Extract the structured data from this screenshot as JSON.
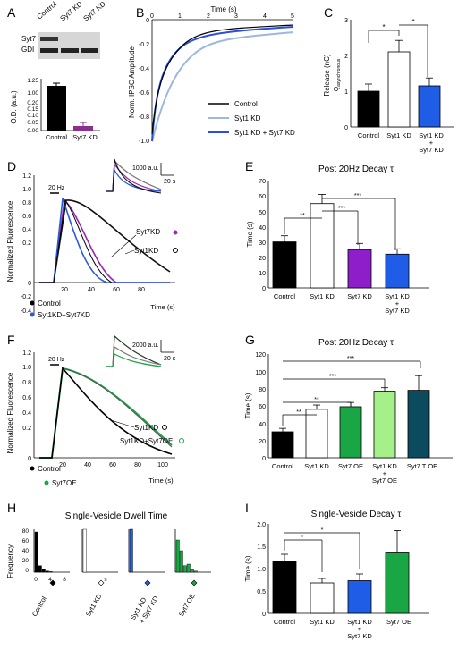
{
  "panels": {
    "A": {
      "letter": "A",
      "blot_labels": [
        "Control",
        "Syt7 KD",
        "Syt7 KD"
      ],
      "rows": [
        "Syt7",
        "GDI"
      ],
      "ylabel": "O.D. (a.u.)",
      "yticks_top": [
        "1.25",
        "1.00"
      ],
      "yticks_bottom": [
        "0.20",
        "0.15",
        "0.10",
        "0.05",
        "0.00"
      ],
      "xlabels": [
        "Control",
        "Syt7 KD"
      ]
    },
    "B": {
      "letter": "B",
      "xlabel": "Time (s)",
      "xticks": [
        "0",
        "1",
        "2",
        "3",
        "4",
        "5"
      ],
      "ylabel": "Norm. IPSC Amplitude",
      "yticks": [
        "0",
        "-0.2",
        "-0.4",
        "-0.6",
        "-0.8",
        "-1.0"
      ],
      "legend": [
        "Control",
        "Syt1 KD",
        "Syt1 KD + Syt7 KD"
      ]
    },
    "C": {
      "letter": "C",
      "ylabel": "Release (nC)",
      "ylabel2": "Q",
      "ylabel2_sub": "asynchronous",
      "yticks": [
        "0",
        "1",
        "2",
        "3"
      ],
      "xlabels": [
        "Control",
        "Syt1 KD",
        "Syt1 KD",
        "+",
        "Syt7 KD"
      ],
      "sig": [
        "*",
        "*"
      ]
    },
    "D": {
      "letter": "D",
      "ylabel": "Normalized Fluorescence",
      "xlabel": "Time (s)",
      "yticks": [
        "1.2",
        "1.0",
        "0.8",
        "0.6",
        "0.4",
        "0.2",
        "0",
        "-0.2",
        "-0.4"
      ],
      "xticks": [
        "20",
        "40",
        "60",
        "80"
      ],
      "stim": "20 Hz",
      "scale": "1000 a.u.",
      "scale_t": "20 s",
      "labels": [
        "Syt7KD",
        "Syt1KD",
        "Control",
        "Syt1KD+Syt7KD"
      ]
    },
    "E": {
      "letter": "E",
      "title": "Post 20Hz Decay τ",
      "ylabel": "Time (s)",
      "yticks": [
        "0",
        "10",
        "20",
        "30",
        "40",
        "50",
        "60",
        "70"
      ],
      "xlabels": [
        "Control",
        "Syt1 KD",
        "Syt7 KD",
        "Syt1 KD",
        "+",
        "Syt7 KD"
      ],
      "sig": [
        "**",
        "***",
        "***"
      ]
    },
    "F": {
      "letter": "F",
      "ylabel": "Normalized Fluorescence",
      "xlabel": "Time (s)",
      "yticks": [
        "1.2",
        "1.0",
        "0.8",
        "0.6",
        "0.4",
        "0.2",
        "0"
      ],
      "xticks": [
        "20",
        "40",
        "60",
        "80",
        "100"
      ],
      "stim": "20 Hz",
      "scale": "2000 a.u.",
      "scale_t": "20 s",
      "labels": [
        "Syt1KD",
        "Syt1KD+Syt7OE",
        "Control",
        "Syt7OE"
      ]
    },
    "G": {
      "letter": "G",
      "title": "Post 20Hz Decay τ",
      "ylabel": "Time (s)",
      "yticks": [
        "0",
        "20",
        "40",
        "60",
        "80",
        "100",
        "120"
      ],
      "xlabels": [
        "Control",
        "Syt1 KD",
        "Syt7 OE",
        "Syt1 KD",
        "+",
        "Syt7 OE",
        "Syt7 T OE"
      ],
      "sig": [
        "**",
        "**",
        "***",
        "***"
      ]
    },
    "H": {
      "letter": "H",
      "title": "Single-Vesicle Dwell Time",
      "ylabel": "Frequency",
      "yticks": [
        "80",
        "60",
        "40",
        "20",
        "0"
      ],
      "xticks": [
        "0",
        "4",
        "8"
      ],
      "groups": [
        "Control",
        "Syt1 KD",
        "Syt1 KD",
        "+ Syt7 KD",
        "Syt7 OE"
      ],
      "extra": "s"
    },
    "I": {
      "letter": "I",
      "title": "Single-Vesicle Decay τ",
      "ylabel": "Time (s)",
      "yticks": [
        "0",
        "0.5",
        "1.0",
        "1.5",
        "2.0"
      ],
      "xlabels": [
        "Control",
        "Syt1 KD",
        "Syt1 KD",
        "+",
        "Syt7 KD",
        "Syt7 OE"
      ],
      "sig": [
        "*",
        "*"
      ]
    }
  },
  "chart_data": [
    {
      "panel": "A",
      "type": "bar",
      "categories": [
        "Control",
        "Syt7 KD"
      ],
      "values": [
        1.0,
        0.05
      ],
      "errors": [
        0.03,
        0.03
      ],
      "colors": [
        "#000000",
        "#8b2f8f"
      ],
      "ylabel": "O.D. (a.u.)"
    },
    {
      "panel": "C",
      "type": "bar",
      "categories": [
        "Control",
        "Syt1 KD",
        "Syt1 KD + Syt7 KD"
      ],
      "values": [
        1.0,
        2.1,
        1.15
      ],
      "errors": [
        0.2,
        0.32,
        0.22
      ],
      "colors": [
        "#000000",
        "#ffffff",
        "#1f5de6"
      ],
      "ylabel": "Release (nC)",
      "ylim": [
        0,
        3
      ]
    },
    {
      "panel": "E",
      "type": "bar",
      "categories": [
        "Control",
        "Syt1 KD",
        "Syt7 KD",
        "Syt1 KD + Syt7 KD"
      ],
      "values": [
        30,
        55,
        25,
        22
      ],
      "errors": [
        4,
        6,
        4,
        3.5
      ],
      "colors": [
        "#000000",
        "#ffffff",
        "#8e1ec9",
        "#1f5de6"
      ],
      "ylabel": "Time (s)",
      "ylim": [
        0,
        70
      ]
    },
    {
      "panel": "G",
      "type": "bar",
      "categories": [
        "Control",
        "Syt1 KD",
        "Syt7 OE",
        "Syt1 KD + Syt7 OE",
        "Syt7 T OE"
      ],
      "values": [
        30,
        56,
        59,
        77,
        78
      ],
      "errors": [
        4,
        5,
        5,
        4,
        17
      ],
      "colors": [
        "#000000",
        "#ffffff",
        "#1aa645",
        "#a6f08a",
        "#0c4a5e"
      ],
      "ylabel": "Time (s)",
      "ylim": [
        0,
        120
      ]
    },
    {
      "panel": "I",
      "type": "bar",
      "categories": [
        "Control",
        "Syt1 KD",
        "Syt1 KD + Syt7 KD",
        "Syt7 OE"
      ],
      "values": [
        1.17,
        0.68,
        0.73,
        1.37
      ],
      "errors": [
        0.15,
        0.1,
        0.15,
        0.48
      ],
      "colors": [
        "#000000",
        "#ffffff",
        "#1f5de6",
        "#1aa645"
      ],
      "ylabel": "Time (s)",
      "ylim": [
        0,
        2.0
      ]
    },
    {
      "panel": "H",
      "type": "bar",
      "series": [
        {
          "name": "Control",
          "values": [
            75,
            12,
            5,
            2,
            1,
            0
          ]
        },
        {
          "name": "Syt1 KD",
          "values": [
            80,
            0,
            0,
            0,
            0,
            0
          ]
        },
        {
          "name": "Syt1 KD + Syt7 KD",
          "values": [
            80,
            0,
            0,
            0,
            0,
            0
          ]
        },
        {
          "name": "Syt7 OE",
          "values": [
            60,
            40,
            12,
            15,
            5,
            2
          ]
        }
      ],
      "colors": [
        "#000000",
        "#ffffff",
        "#1f5de6",
        "#1aa645"
      ],
      "ylim": [
        0,
        80
      ]
    }
  ]
}
